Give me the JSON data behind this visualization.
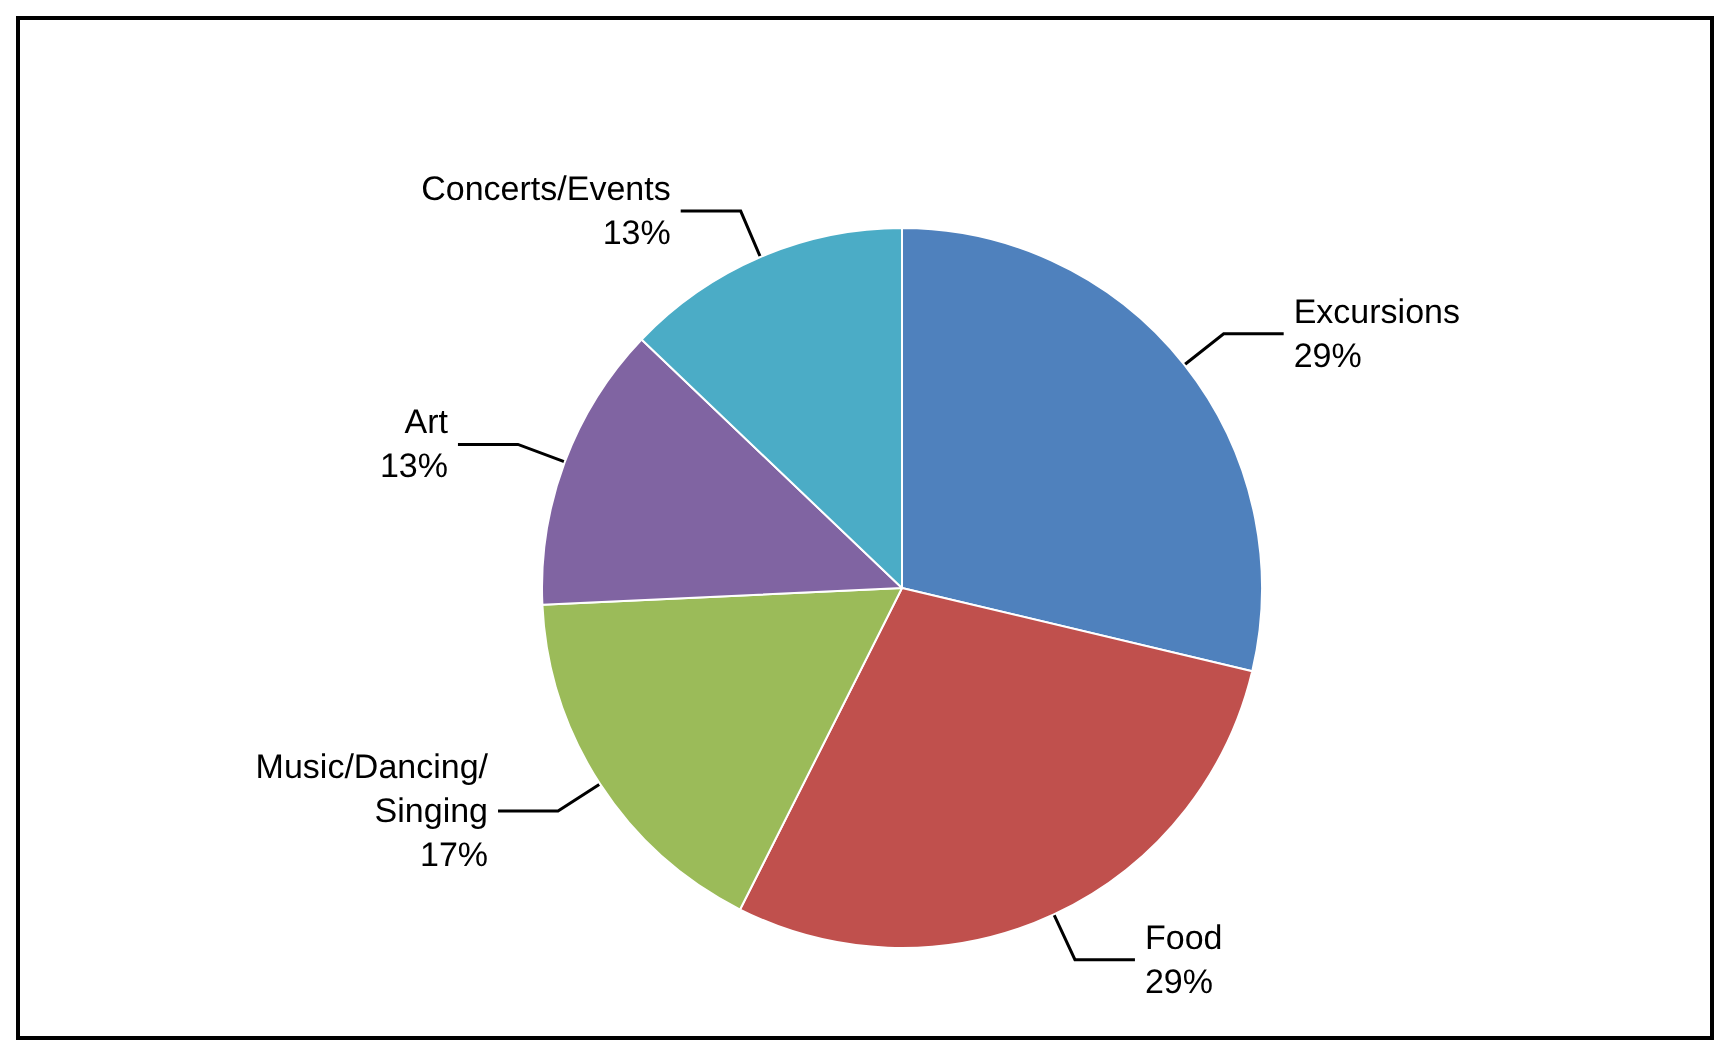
{
  "chart_data": {
    "type": "pie",
    "categories": [
      "Excursions",
      "Food",
      "Music/Dancing/\nSinging",
      "Art",
      "Concerts/Events"
    ],
    "values": [
      29,
      29,
      17,
      13,
      13
    ],
    "colors": [
      "#4f81bd",
      "#c0504d",
      "#9bbb59",
      "#8064a2",
      "#4bacc6"
    ],
    "value_labels": [
      "29%",
      "29%",
      "17%",
      "13%",
      "13%"
    ],
    "legend": false
  }
}
